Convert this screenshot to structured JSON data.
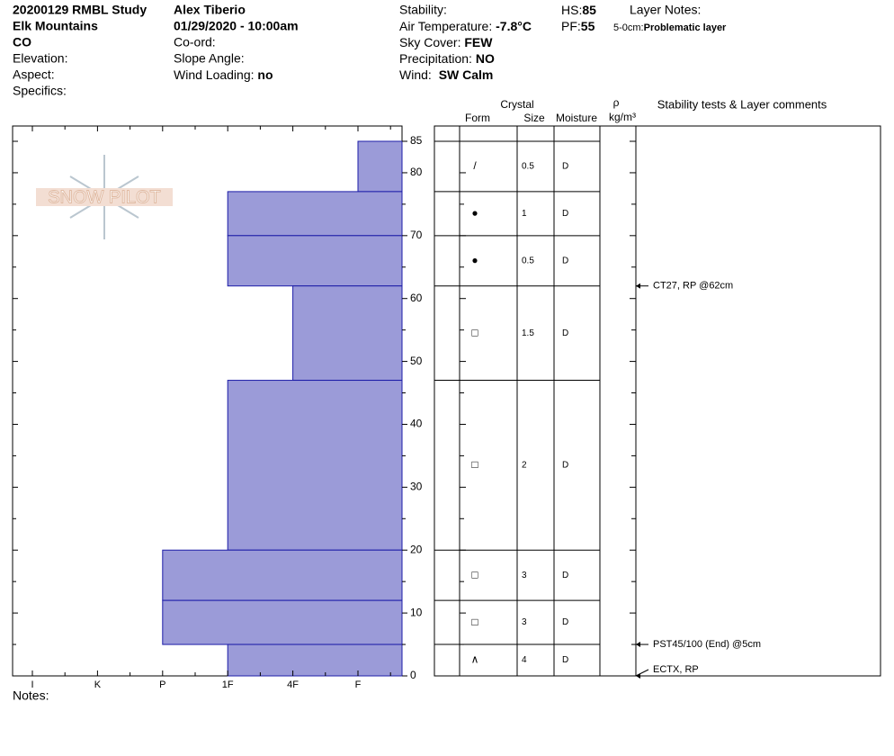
{
  "header": {
    "title": "20200129 RMBL Study",
    "range": "Elk Mountains",
    "state": "CO",
    "elevation": "Elevation:",
    "aspect": "Aspect:",
    "specifics": "Specifics:",
    "observer": "Alex Tiberio",
    "datetime": "01/29/2020 - 10:00am",
    "coord": "Co-ord:",
    "slope_angle": "Slope Angle:",
    "wind_loading": {
      "label": "Wind Loading:",
      "value": "no"
    },
    "stability": "Stability:",
    "air_temperature": {
      "label": "Air Temperature:",
      "value": "-7.8°C"
    },
    "sky_cover": {
      "label": "Sky Cover:",
      "value": "FEW"
    },
    "precipitation": {
      "label": "Precipitation:",
      "value": "NO"
    },
    "wind": {
      "label": "Wind:",
      "value": "SW Calm"
    },
    "hs": {
      "label": "HS:",
      "value": 85
    },
    "pf": {
      "label": "PF:",
      "value": 55
    },
    "layer_notes": {
      "label": "Layer Notes:",
      "range": "5-0cm:",
      "text": "Problematic layer"
    }
  },
  "logo": "SNOW PILOT",
  "columns": {
    "crystal": "Crystal",
    "form": "Form",
    "size": "Size",
    "moisture": "Moisture",
    "rho": "ρ",
    "density_unit": "kg/m³",
    "comments": "Stability tests & Layer comments"
  },
  "notes": "Notes:",
  "chart_data": {
    "type": "snow-profile",
    "ylim": [
      0,
      85
    ],
    "yticks": [
      0,
      10,
      20,
      30,
      40,
      50,
      60,
      70,
      80,
      85
    ],
    "yminorticks": [
      5,
      15,
      25,
      35,
      45,
      55,
      65,
      75
    ],
    "hardness_scale": [
      "I",
      "K",
      "P",
      "1F",
      "4F",
      "F"
    ],
    "color": "#9b9bd8",
    "edge_color": "#1c1ca8",
    "layers": [
      {
        "top": 85,
        "bottom": 77,
        "hardness": "F",
        "form": "/",
        "size": 0.5,
        "moisture": "D"
      },
      {
        "top": 77,
        "bottom": 70,
        "hardness": "1F",
        "form": "●",
        "size": 1,
        "moisture": "D"
      },
      {
        "top": 70,
        "bottom": 62,
        "hardness": "1F",
        "form": "●",
        "size": 0.5,
        "moisture": "D"
      },
      {
        "top": 62,
        "bottom": 47,
        "hardness": "4F",
        "form": "□",
        "size": 1.5,
        "moisture": "D"
      },
      {
        "top": 47,
        "bottom": 20,
        "hardness": "1F",
        "form": "□",
        "size": 2,
        "moisture": "D"
      },
      {
        "top": 20,
        "bottom": 12,
        "hardness": "P",
        "form": "□",
        "size": 3,
        "moisture": "D"
      },
      {
        "top": 12,
        "bottom": 5,
        "hardness": "P",
        "form": "□",
        "size": 3,
        "moisture": "D"
      },
      {
        "top": 5,
        "bottom": 0,
        "hardness": "1F",
        "form": "∧",
        "size": 4,
        "moisture": "D"
      }
    ],
    "tests": [
      {
        "depth": 62,
        "text": "CT27, RP @62cm"
      },
      {
        "depth": 5,
        "text": "PST45/100 (End) @5cm"
      },
      {
        "depth": 0,
        "text": "ECTX, RP"
      }
    ]
  }
}
